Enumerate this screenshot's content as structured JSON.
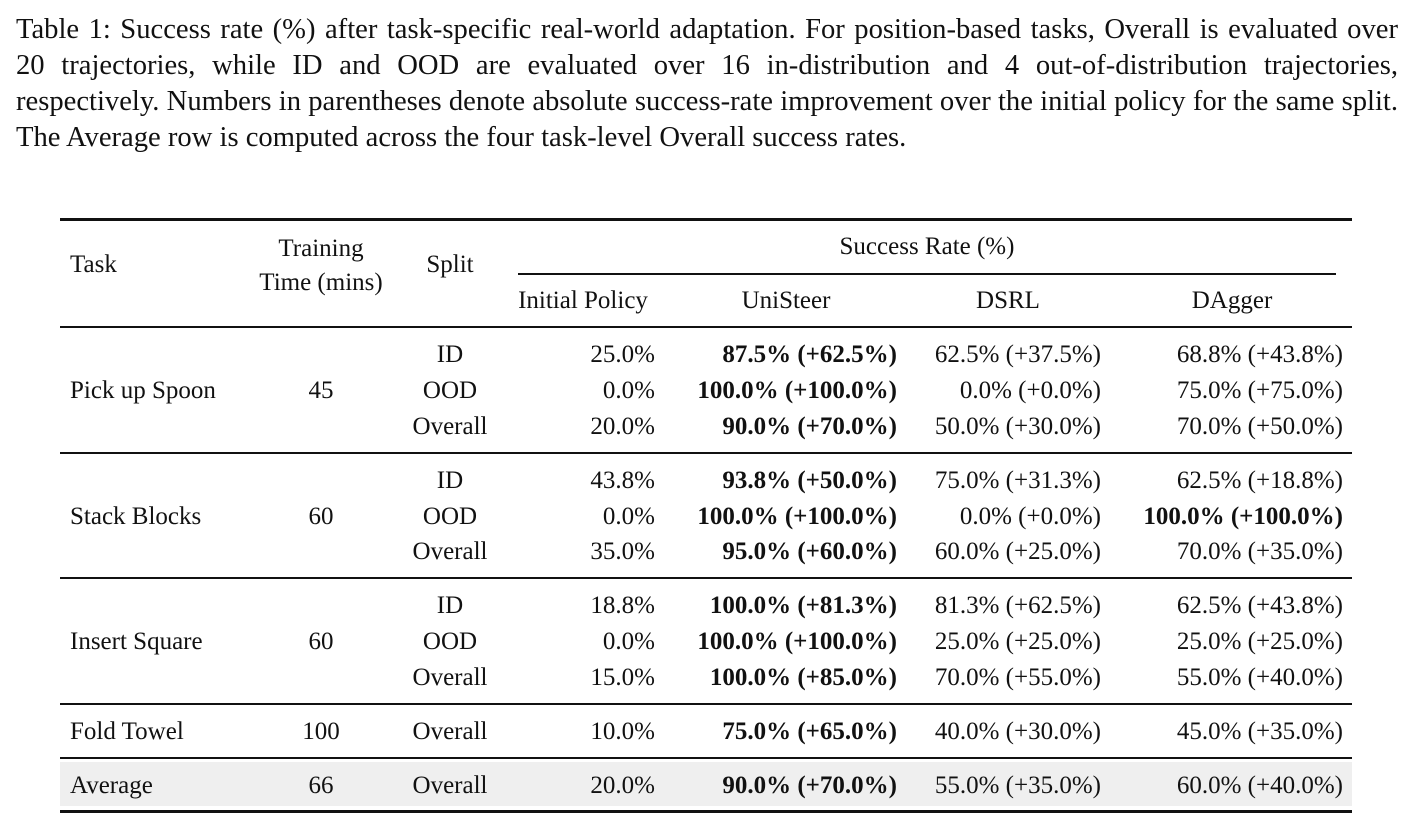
{
  "caption": "Table 1: Success rate (%) after task-specific real-world adaptation. For position-based tasks, Overall is evaluated over 20 trajectories, while ID and OOD are evaluated over 16 in-distribution and 4 out-of-distribution trajectories, respectively. Numbers in parentheses denote absolute success-rate improvement over the initial policy for the same split. The Average row is computed across the four task-level Overall success rates.",
  "headers": {
    "task": "Task",
    "training_line1": "Training",
    "training_line2": "Time (mins)",
    "split": "Split",
    "success_rate": "Success Rate (%)",
    "initial_policy": "Initial Policy",
    "unisteer": "UniSteer",
    "dsrl": "DSRL",
    "dagger": "DAgger"
  },
  "groups": [
    {
      "task": "Pick up Spoon",
      "time": "45",
      "rows": [
        {
          "split": "ID",
          "initial": "25.0%",
          "unisteer": "87.5% (+62.5%)",
          "dsrl": "62.5% (+37.5%)",
          "dagger": "68.8% (+43.8%)"
        },
        {
          "split": "OOD",
          "initial": "0.0%",
          "unisteer": "100.0% (+100.0%)",
          "dsrl": "0.0% (+0.0%)",
          "dagger": "75.0% (+75.0%)"
        },
        {
          "split": "Overall",
          "initial": "20.0%",
          "unisteer": "90.0% (+70.0%)",
          "dsrl": "50.0% (+30.0%)",
          "dagger": "70.0% (+50.0%)"
        }
      ]
    },
    {
      "task": "Stack Blocks",
      "time": "60",
      "rows": [
        {
          "split": "ID",
          "initial": "43.8%",
          "unisteer": "93.8% (+50.0%)",
          "dsrl": "75.0% (+31.3%)",
          "dagger": "62.5% (+18.8%)"
        },
        {
          "split": "OOD",
          "initial": "0.0%",
          "unisteer": "100.0% (+100.0%)",
          "dsrl": "0.0% (+0.0%)",
          "dagger": "100.0% (+100.0%)"
        },
        {
          "split": "Overall",
          "initial": "35.0%",
          "unisteer": "95.0% (+60.0%)",
          "dsrl": "60.0% (+25.0%)",
          "dagger": "70.0% (+35.0%)"
        }
      ]
    },
    {
      "task": "Insert Square",
      "time": "60",
      "rows": [
        {
          "split": "ID",
          "initial": "18.8%",
          "unisteer": "100.0% (+81.3%)",
          "dsrl": "81.3% (+62.5%)",
          "dagger": "62.5% (+43.8%)"
        },
        {
          "split": "OOD",
          "initial": "0.0%",
          "unisteer": "100.0% (+100.0%)",
          "dsrl": "25.0% (+25.0%)",
          "dagger": "25.0% (+25.0%)"
        },
        {
          "split": "Overall",
          "initial": "15.0%",
          "unisteer": "100.0% (+85.0%)",
          "dsrl": "70.0% (+55.0%)",
          "dagger": "55.0% (+40.0%)"
        }
      ]
    },
    {
      "task": "Fold Towel",
      "time": "100",
      "rows": [
        {
          "split": "Overall",
          "initial": "10.0%",
          "unisteer": "75.0% (+65.0%)",
          "dsrl": "40.0% (+30.0%)",
          "dagger": "45.0% (+35.0%)"
        }
      ]
    },
    {
      "task": "Average",
      "time": "66",
      "rows": [
        {
          "split": "Overall",
          "initial": "20.0%",
          "unisteer": "90.0% (+70.0%)",
          "dsrl": "55.0% (+35.0%)",
          "dagger": "60.0% (+40.0%)"
        }
      ]
    }
  ]
}
